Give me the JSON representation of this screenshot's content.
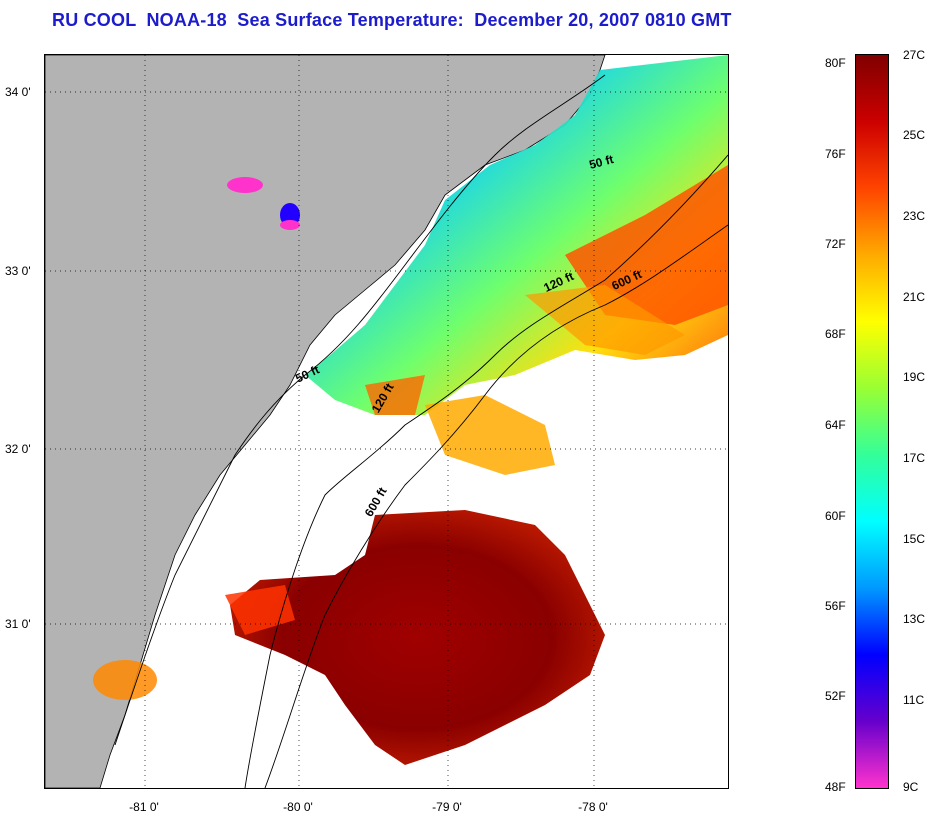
{
  "title": "RU COOL  NOAA-18  Sea Surface Temperature:  December 20, 2007 0810 GMT",
  "map": {
    "latitude_labels": [
      "34 0'",
      "33 0'",
      "32 0'",
      "31 0'"
    ],
    "longitude_labels": [
      "-81 0'",
      "-80 0'",
      "-79 0'",
      "-78 0'"
    ],
    "latitude_values": [
      34,
      33,
      32,
      31
    ],
    "longitude_values": [
      -81,
      -80,
      -79,
      -78
    ],
    "grid": "dotted",
    "contours": [
      {
        "label": "50 ft"
      },
      {
        "label": "120 ft"
      },
      {
        "label": "600 ft"
      },
      {
        "label": "50 ft"
      },
      {
        "label": "120 ft"
      },
      {
        "label": "600 ft"
      }
    ],
    "colors": {
      "land": "#b3b3b3",
      "no_data": "#ffffff",
      "grid": "#000000",
      "title": "#1c1ccc"
    }
  },
  "colorbar": {
    "fahrenheit_labels": [
      "80F",
      "76F",
      "72F",
      "68F",
      "64F",
      "60F",
      "56F",
      "52F",
      "48F"
    ],
    "celsius_labels": [
      "27C",
      "25C",
      "23C",
      "21C",
      "19C",
      "17C",
      "15C",
      "13C",
      "11C",
      "9C"
    ],
    "range_f": [
      48,
      80
    ],
    "range_c": [
      9,
      27
    ],
    "gradient_colors": [
      "#ff33cc",
      "#6600cc",
      "#0000ff",
      "#0099ff",
      "#00ffff",
      "#33ff99",
      "#99ff33",
      "#ffff00",
      "#ffaa00",
      "#ff4400",
      "#cc0000",
      "#800000"
    ]
  }
}
